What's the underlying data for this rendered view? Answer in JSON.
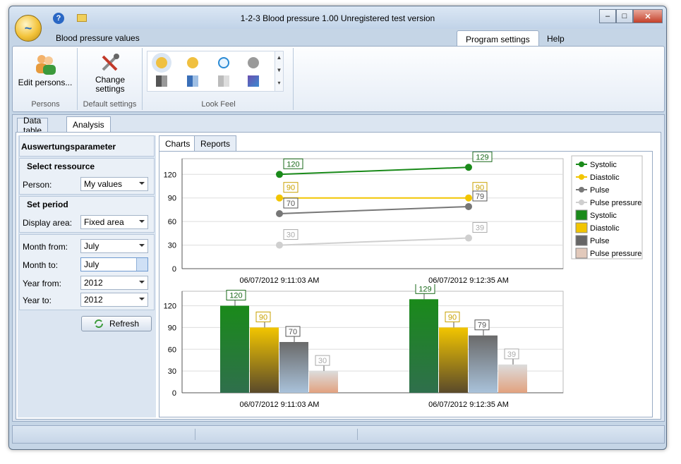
{
  "window": {
    "title": "1-2-3 Blood pressure  1.00 Unregistered test version",
    "minimize": "–",
    "maximize": "□",
    "close": "✕"
  },
  "ribbon_tabs": {
    "current_title": "Blood pressure values",
    "program_settings": "Program settings",
    "help": "Help"
  },
  "ribbon": {
    "edit_persons": "Edit persons...",
    "change_settings_1": "Change",
    "change_settings_2": "settings",
    "group_persons": "Persons",
    "group_default": "Default settings",
    "group_look": "Look  Feel"
  },
  "tabs": {
    "data_table": "Data table",
    "analysis": "Analysis"
  },
  "params": {
    "header": "Auswertungsparameter",
    "select_resource": "Select ressource",
    "person_label": "Person:",
    "person_value": "My values",
    "set_period": "Set period",
    "display_area_label": "Display area:",
    "display_area_value": "Fixed area",
    "month_from_label": "Month from:",
    "month_from_value": "July",
    "month_to_label": "Month to:",
    "month_to_value": "July",
    "year_from_label": "Year from:",
    "year_from_value": "2012",
    "year_to_label": "Year to:",
    "year_to_value": "2012",
    "refresh": "Refresh"
  },
  "chart_tabs": {
    "charts": "Charts",
    "reports": "Reports"
  },
  "colors": {
    "systolic": "#1a8a1a",
    "diastolic": "#f2c500",
    "pulse": "#777777",
    "pulse_pressure": "#cfcfcf"
  },
  "chart_data": [
    {
      "type": "line",
      "categories": [
        "06/07/2012 9:11:03 AM",
        "06/07/2012 9:12:35 AM"
      ],
      "series": [
        {
          "name": "Systolic",
          "values": [
            120,
            129
          ]
        },
        {
          "name": "Diastolic",
          "values": [
            90,
            90
          ]
        },
        {
          "name": "Pulse",
          "values": [
            70,
            79
          ]
        },
        {
          "name": "Pulse pressure",
          "values": [
            30,
            39
          ]
        }
      ],
      "ylim": [
        0,
        140
      ],
      "yticks": [
        0,
        30,
        60,
        90,
        120
      ],
      "grid": true,
      "legend": "right"
    },
    {
      "type": "bar",
      "categories": [
        "06/07/2012 9:11:03 AM",
        "06/07/2012 9:12:35 AM"
      ],
      "series": [
        {
          "name": "Systolic",
          "values": [
            120,
            129
          ]
        },
        {
          "name": "Diastolic",
          "values": [
            90,
            90
          ]
        },
        {
          "name": "Pulse",
          "values": [
            70,
            79
          ]
        },
        {
          "name": "Pulse pressure",
          "values": [
            30,
            39
          ]
        }
      ],
      "ylim": [
        0,
        140
      ],
      "yticks": [
        0,
        30,
        60,
        90,
        120
      ],
      "grid": true
    }
  ]
}
